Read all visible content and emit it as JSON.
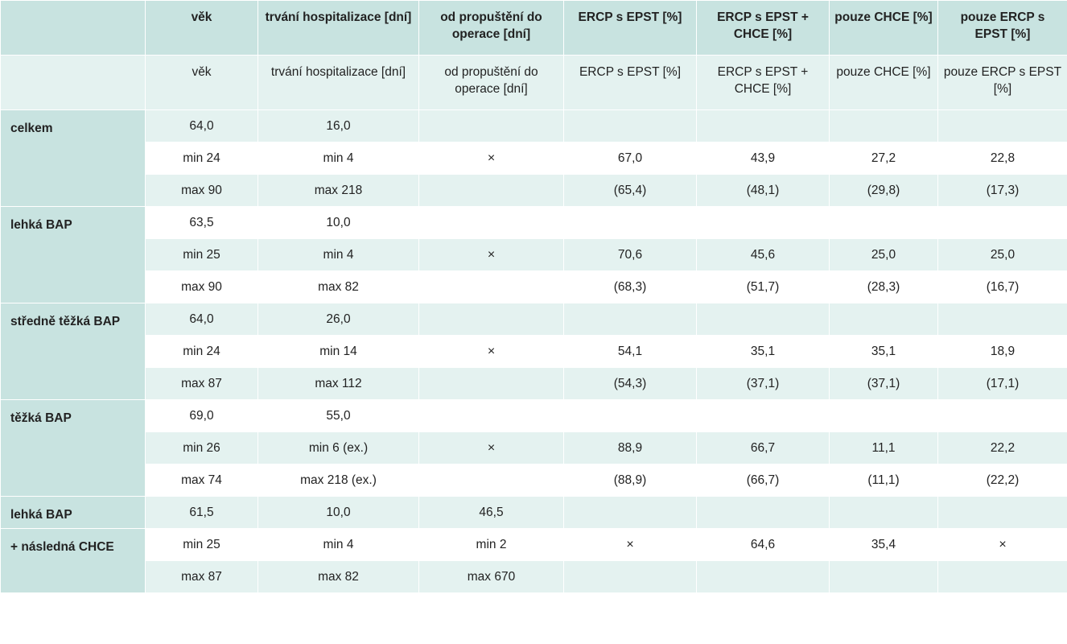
{
  "header": [
    "",
    "věk",
    "trvání hospitalizace [dní]",
    "od propuštění do operace [dní]",
    "ERCP s EPST [%]",
    "ERCP s EPST + CHCE [%]",
    "pouze CHCE [%]",
    "pouze ERCP s EPST [%]"
  ],
  "subheader": [
    "",
    "věk",
    "trvání hospitalizace [dní]",
    "od propuštění do operace [dní]",
    "ERCP s EPST [%]",
    "ERCP s EPST + CHCE [%]",
    "pouze CHCE [%]",
    "pouze ERCP s EPST [%]"
  ],
  "groups": [
    {
      "label": "celkem",
      "rows": [
        [
          "64,0",
          "16,0",
          "",
          "",
          "",
          "",
          ""
        ],
        [
          "min 24",
          "min 4",
          "×",
          "67,0",
          "43,9",
          "27,2",
          "22,8"
        ],
        [
          "max 90",
          "max 218",
          "",
          "(65,4)",
          "(48,1)",
          "(29,8)",
          "(17,3)"
        ]
      ]
    },
    {
      "label": "lehká BAP",
      "rows": [
        [
          "63,5",
          "10,0",
          "",
          "",
          "",
          "",
          ""
        ],
        [
          "min 25",
          "min 4",
          "×",
          "70,6",
          "45,6",
          "25,0",
          "25,0"
        ],
        [
          "max 90",
          "max 82",
          "",
          "(68,3)",
          "(51,7)",
          "(28,3)",
          "(16,7)"
        ]
      ]
    },
    {
      "label": "středně těžká BAP",
      "rows": [
        [
          "64,0",
          "26,0",
          "",
          "",
          "",
          "",
          ""
        ],
        [
          "min 24",
          "min 14",
          "×",
          "54,1",
          "35,1",
          "35,1",
          "18,9"
        ],
        [
          "max 87",
          "max 112",
          "",
          "(54,3)",
          "(37,1)",
          "(37,1)",
          "(17,1)"
        ]
      ]
    },
    {
      "label": "těžká BAP",
      "rows": [
        [
          "69,0",
          "55,0",
          "",
          "",
          "",
          "",
          ""
        ],
        [
          "min 26",
          "min 6 (ex.)",
          "×",
          "88,9",
          "66,7",
          "11,1",
          "22,2"
        ],
        [
          "max 74",
          "max 218 (ex.)",
          "",
          "(88,9)",
          "(66,7)",
          "(11,1)",
          "(22,2)"
        ]
      ]
    }
  ],
  "last_group": {
    "labels": [
      "lehká BAP",
      "+ následná CHCE"
    ],
    "rows": [
      [
        "61,5",
        "10,0",
        "46,5",
        "",
        "",
        "",
        ""
      ],
      [
        "min 25",
        "min 4",
        "min 2",
        "×",
        "64,6",
        "35,4",
        "×"
      ],
      [
        "max 87",
        "max 82",
        "max 670",
        "",
        "",
        "",
        ""
      ]
    ]
  }
}
